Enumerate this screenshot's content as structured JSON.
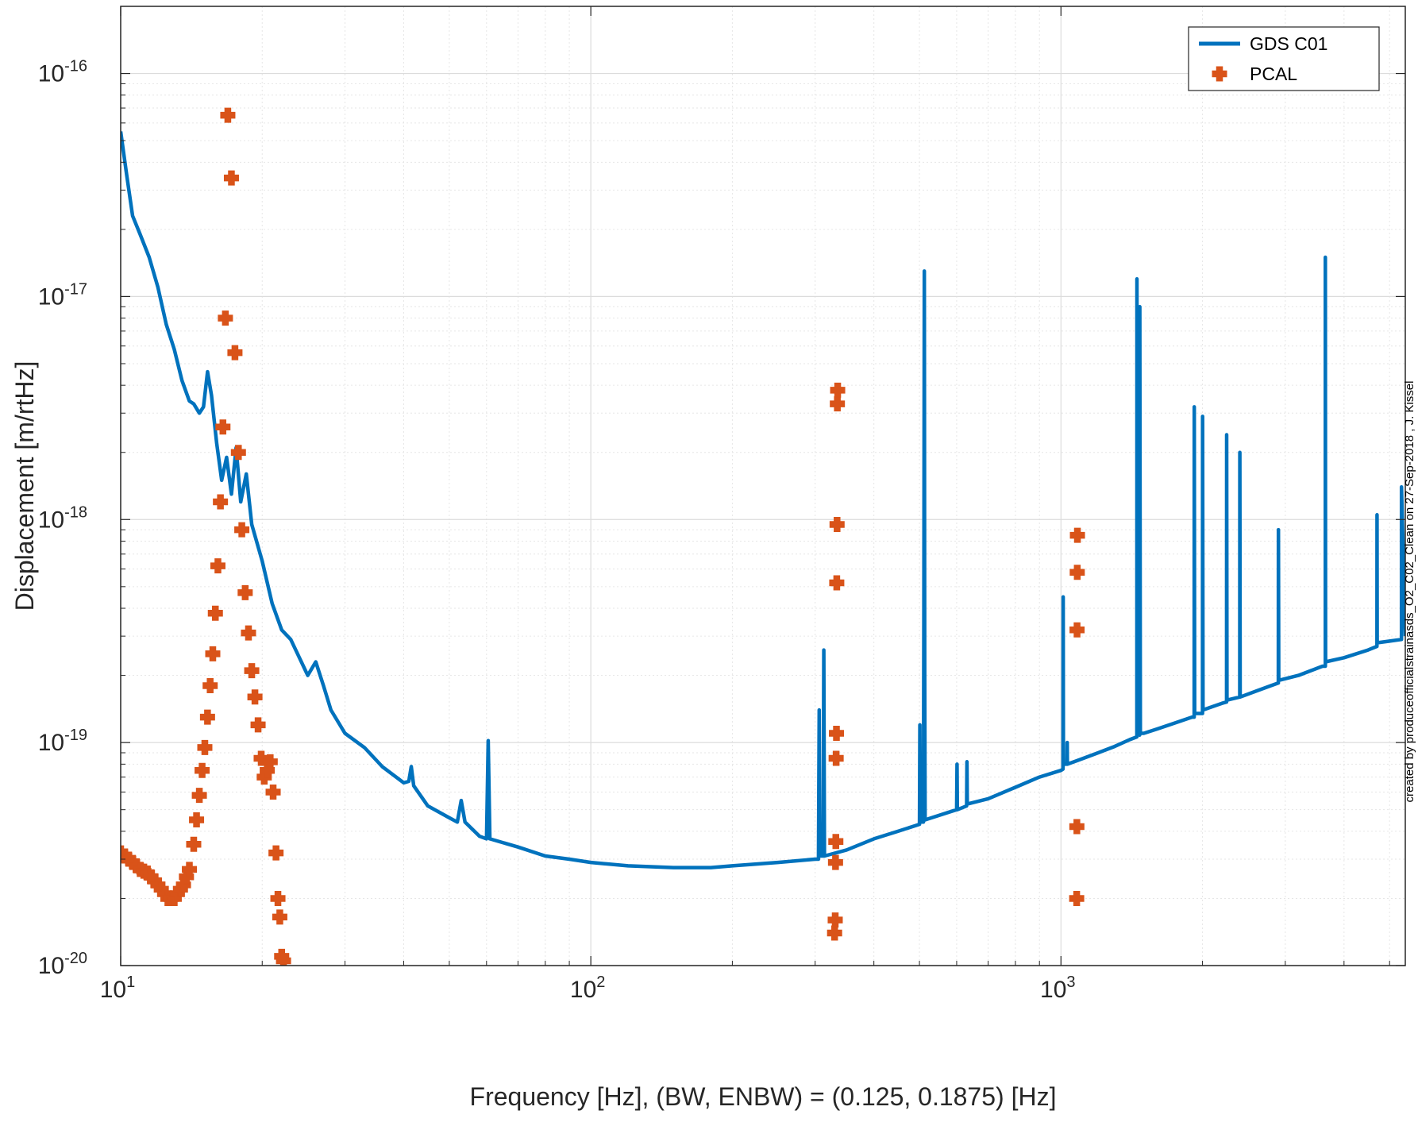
{
  "chart_data": {
    "type": "line",
    "xlabel": "Frequency [Hz], (BW, ENBW) = (0.125, 0.1875) [Hz]",
    "ylabel": "Displacement [m/rtHz]",
    "xscale": "log",
    "yscale": "log",
    "xlim": [
      10,
      5400
    ],
    "ylim": [
      1e-20,
      2e-16
    ],
    "grid": true,
    "legend_position": "top-right",
    "x_ticks": [
      {
        "base": "10",
        "exp": "1",
        "value": 10
      },
      {
        "base": "10",
        "exp": "2",
        "value": 100
      },
      {
        "base": "10",
        "exp": "3",
        "value": 1000
      }
    ],
    "y_ticks": [
      {
        "base": "10",
        "exp": "-20",
        "value": 1e-20
      },
      {
        "base": "10",
        "exp": "-19",
        "value": 1e-19
      },
      {
        "base": "10",
        "exp": "-18",
        "value": 1e-18
      },
      {
        "base": "10",
        "exp": "-17",
        "value": 1e-17
      },
      {
        "base": "10",
        "exp": "-16",
        "value": 1e-16
      }
    ],
    "series": [
      {
        "name": "GDS C01",
        "kind": "line",
        "color": "#0072bd",
        "points": [
          [
            10,
            5.5e-17
          ],
          [
            10.3,
            3.5e-17
          ],
          [
            10.6,
            2.3e-17
          ],
          [
            11,
            1.9e-17
          ],
          [
            11.5,
            1.5e-17
          ],
          [
            12,
            1.1e-17
          ],
          [
            12.5,
            7.5e-18
          ],
          [
            13,
            5.8e-18
          ],
          [
            13.5,
            4.2e-18
          ],
          [
            14,
            3.4e-18
          ],
          [
            14.3,
            3.3e-18
          ],
          [
            14.7,
            3e-18
          ],
          [
            15,
            3.2e-18
          ],
          [
            15.3,
            4.6e-18
          ],
          [
            15.6,
            3.6e-18
          ],
          [
            16,
            2.2e-18
          ],
          [
            16.4,
            1.5e-18
          ],
          [
            16.8,
            1.9e-18
          ],
          [
            17.2,
            1.3e-18
          ],
          [
            17.6,
            2.1e-18
          ],
          [
            18,
            1.2e-18
          ],
          [
            18.5,
            1.6e-18
          ],
          [
            19,
            9.5e-19
          ],
          [
            20,
            6.5e-19
          ],
          [
            21,
            4.2e-19
          ],
          [
            22,
            3.2e-19
          ],
          [
            23,
            2.9e-19
          ],
          [
            24,
            2.4e-19
          ],
          [
            25,
            2e-19
          ],
          [
            26,
            2.3e-19
          ],
          [
            27,
            1.8e-19
          ],
          [
            28,
            1.4e-19
          ],
          [
            30,
            1.1e-19
          ],
          [
            33,
            9.5e-20
          ],
          [
            36,
            7.8e-20
          ],
          [
            40,
            6.6e-20
          ],
          [
            41,
            6.7e-20
          ],
          [
            41.5,
            7.8e-20
          ],
          [
            42,
            6.4e-20
          ],
          [
            45,
            5.2e-20
          ],
          [
            50,
            4.6e-20
          ],
          [
            52,
            4.4e-20
          ],
          [
            53,
            5.5e-20
          ],
          [
            54,
            4.4e-20
          ],
          [
            58,
            3.8e-20
          ],
          [
            60,
            3.7e-20
          ],
          [
            60.5,
            1.02e-19
          ],
          [
            61,
            3.7e-20
          ],
          [
            70,
            3.4e-20
          ],
          [
            80,
            3.1e-20
          ],
          [
            90,
            3e-20
          ],
          [
            100,
            2.9e-20
          ],
          [
            120,
            2.8e-20
          ],
          [
            150,
            2.75e-20
          ],
          [
            180,
            2.75e-20
          ],
          [
            200,
            2.8e-20
          ],
          [
            250,
            2.9e-20
          ],
          [
            300,
            3e-20
          ],
          [
            305,
            3e-20
          ],
          [
            306,
            1.4e-19
          ],
          [
            307,
            3.1e-20
          ],
          [
            312,
            3.1e-20
          ],
          [
            313,
            2.6e-19
          ],
          [
            314,
            3.1e-20
          ],
          [
            350,
            3.3e-20
          ],
          [
            400,
            3.7e-20
          ],
          [
            450,
            4e-20
          ],
          [
            500,
            4.3e-20
          ],
          [
            501,
            1.2e-19
          ],
          [
            502,
            4.4e-20
          ],
          [
            510,
            4.4e-20
          ],
          [
            511,
            3.6e-19
          ],
          [
            512,
            1.3e-17
          ],
          [
            513,
            2e-19
          ],
          [
            514,
            4.5e-20
          ],
          [
            600,
            5e-20
          ],
          [
            601,
            8e-20
          ],
          [
            602,
            5e-20
          ],
          [
            630,
            5.2e-20
          ],
          [
            631,
            8.2e-20
          ],
          [
            632,
            5.3e-20
          ],
          [
            700,
            5.6e-20
          ],
          [
            800,
            6.3e-20
          ],
          [
            900,
            7e-20
          ],
          [
            1000,
            7.5e-20
          ],
          [
            1010,
            7.6e-20
          ],
          [
            1011,
            4.5e-19
          ],
          [
            1012,
            8e-20
          ],
          [
            1030,
            8e-20
          ],
          [
            1031,
            1e-19
          ],
          [
            1032,
            8e-20
          ],
          [
            1100,
            8.4e-20
          ],
          [
            1200,
            9e-20
          ],
          [
            1300,
            9.6e-20
          ],
          [
            1400,
            1.03e-19
          ],
          [
            1450,
            1.06e-19
          ],
          [
            1451,
            1.2e-17
          ],
          [
            1455,
            1.1e-19
          ],
          [
            1470,
            1.08e-19
          ],
          [
            1471,
            9e-18
          ],
          [
            1475,
            1.1e-19
          ],
          [
            1500,
            1.1e-19
          ],
          [
            1600,
            1.15e-19
          ],
          [
            1700,
            1.2e-19
          ],
          [
            1800,
            1.25e-19
          ],
          [
            1900,
            1.3e-19
          ],
          [
            1920,
            1.3e-19
          ],
          [
            1921,
            3.2e-18
          ],
          [
            1925,
            1.35e-19
          ],
          [
            2000,
            1.35e-19
          ],
          [
            2001,
            2.9e-18
          ],
          [
            2005,
            1.4e-19
          ],
          [
            2200,
            1.5e-19
          ],
          [
            2250,
            1.52e-19
          ],
          [
            2251,
            2.4e-18
          ],
          [
            2255,
            1.55e-19
          ],
          [
            2400,
            1.6e-19
          ],
          [
            2401,
            2e-18
          ],
          [
            2405,
            1.6e-19
          ],
          [
            2600,
            1.7e-19
          ],
          [
            2800,
            1.8e-19
          ],
          [
            2900,
            1.85e-19
          ],
          [
            2901,
            9e-19
          ],
          [
            2905,
            1.9e-19
          ],
          [
            3200,
            2e-19
          ],
          [
            3400,
            2.1e-19
          ],
          [
            3600,
            2.2e-19
          ],
          [
            3650,
            2.2e-19
          ],
          [
            3651,
            1.5e-17
          ],
          [
            3655,
            2.3e-19
          ],
          [
            4000,
            2.4e-19
          ],
          [
            4500,
            2.6e-19
          ],
          [
            4700,
            2.7e-19
          ],
          [
            4701,
            1.05e-18
          ],
          [
            4705,
            2.8e-19
          ],
          [
            5000,
            2.85e-19
          ],
          [
            5300,
            2.9e-19
          ],
          [
            5301,
            1.4e-18
          ],
          [
            5400,
            3e-19
          ]
        ]
      },
      {
        "name": "PCAL",
        "kind": "scatter",
        "color": "#d95319",
        "points": [
          [
            10,
            3.2e-20
          ],
          [
            10.2,
            3.1e-20
          ],
          [
            10.4,
            3e-20
          ],
          [
            10.6,
            2.9e-20
          ],
          [
            10.8,
            2.8e-20
          ],
          [
            11,
            2.7e-20
          ],
          [
            11.2,
            2.65e-20
          ],
          [
            11.4,
            2.6e-20
          ],
          [
            11.6,
            2.5e-20
          ],
          [
            11.8,
            2.4e-20
          ],
          [
            12,
            2.3e-20
          ],
          [
            12.2,
            2.2e-20
          ],
          [
            12.4,
            2.1e-20
          ],
          [
            12.6,
            2e-20
          ],
          [
            12.8,
            2e-20
          ],
          [
            13,
            2e-20
          ],
          [
            13.2,
            2.1e-20
          ],
          [
            13.4,
            2.2e-20
          ],
          [
            13.6,
            2.3e-20
          ],
          [
            13.8,
            2.5e-20
          ],
          [
            14,
            2.7e-20
          ],
          [
            14.3,
            3.5e-20
          ],
          [
            14.5,
            4.5e-20
          ],
          [
            14.7,
            5.8e-20
          ],
          [
            14.9,
            7.5e-20
          ],
          [
            15.1,
            9.5e-20
          ],
          [
            15.3,
            1.3e-19
          ],
          [
            15.5,
            1.8e-19
          ],
          [
            15.7,
            2.5e-19
          ],
          [
            15.9,
            3.8e-19
          ],
          [
            16.1,
            6.2e-19
          ],
          [
            16.3,
            1.2e-18
          ],
          [
            16.5,
            2.6e-18
          ],
          [
            16.7,
            8e-18
          ],
          [
            16.9,
            6.5e-17
          ],
          [
            17.2,
            3.4e-17
          ],
          [
            17.5,
            5.6e-18
          ],
          [
            17.8,
            2e-18
          ],
          [
            18.1,
            9e-19
          ],
          [
            18.4,
            4.7e-19
          ],
          [
            18.7,
            3.1e-19
          ],
          [
            19,
            2.1e-19
          ],
          [
            19.3,
            1.6e-19
          ],
          [
            19.6,
            1.2e-19
          ],
          [
            19.9,
            8.5e-20
          ],
          [
            20.2,
            7e-20
          ],
          [
            20.5,
            7.5e-20
          ],
          [
            20.8,
            8.2e-20
          ],
          [
            21.1,
            6e-20
          ],
          [
            21.4,
            3.2e-20
          ],
          [
            21.6,
            2e-20
          ],
          [
            21.8,
            1.65e-20
          ],
          [
            22,
            1.1e-20
          ],
          [
            22.2,
            1.05e-20
          ],
          [
            330,
            1.4e-20
          ],
          [
            331,
            1.6e-20
          ],
          [
            331.5,
            2.9e-20
          ],
          [
            332,
            3.6e-20
          ],
          [
            332.5,
            8.5e-20
          ],
          [
            333,
            1.1e-19
          ],
          [
            333.5,
            5.2e-19
          ],
          [
            334,
            9.5e-19
          ],
          [
            334.5,
            3.3e-18
          ],
          [
            335,
            3.8e-18
          ],
          [
            1080,
            2e-20
          ],
          [
            1081,
            4.2e-20
          ],
          [
            1082,
            3.2e-19
          ],
          [
            1083,
            5.8e-19
          ],
          [
            1084,
            8.5e-19
          ]
        ]
      }
    ]
  },
  "legend": {
    "line_label": "GDS C01",
    "marker_label": "PCAL",
    "line_color": "#0072bd",
    "marker_color": "#d95319"
  },
  "credit": "created by produceofficialstrainasds_O2_C02_Clean on 27-Sep-2018 , J. Kissel"
}
